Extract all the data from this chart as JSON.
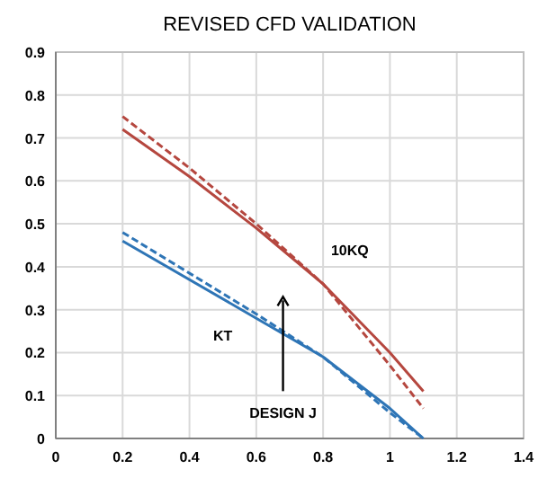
{
  "chart_data": {
    "type": "line",
    "title": "REVISED CFD VALIDATION",
    "xlim": [
      0,
      1.4
    ],
    "xticks": [
      0,
      0.2,
      0.4,
      0.6,
      0.8,
      1,
      1.2,
      1.4
    ],
    "ylim": [
      0,
      0.9
    ],
    "yticks": [
      0,
      0.1,
      0.2,
      0.3,
      0.4,
      0.5,
      0.6,
      0.7,
      0.8,
      0.9
    ],
    "grid": true,
    "marker": "none",
    "series": [
      {
        "color": "#b5473f",
        "line_style": "solid",
        "x": [
          0.2,
          0.4,
          0.6,
          0.8,
          1.0,
          1.1
        ],
        "values": [
          0.72,
          0.61,
          0.49,
          0.36,
          0.2,
          0.11
        ]
      },
      {
        "color": "#b5473f",
        "line_style": "dashed",
        "x": [
          0.2,
          0.4,
          0.6,
          0.8,
          1.0,
          1.1
        ],
        "values": [
          0.75,
          0.63,
          0.5,
          0.36,
          0.17,
          0.07
        ]
      },
      {
        "color": "#2e75b6",
        "line_style": "solid",
        "x": [
          0.2,
          0.6,
          0.8,
          1.0,
          1.1
        ],
        "values": [
          0.46,
          0.28,
          0.19,
          0.07,
          0
        ]
      },
      {
        "color": "#2e75b6",
        "line_style": "dashed",
        "x": [
          0.2,
          0.6,
          0.8,
          1.0,
          1.1
        ],
        "values": [
          0.48,
          0.29,
          0.19,
          0.06,
          0
        ]
      }
    ],
    "annotations": [
      "10KQ",
      "KT",
      "DESIGN J"
    ]
  }
}
